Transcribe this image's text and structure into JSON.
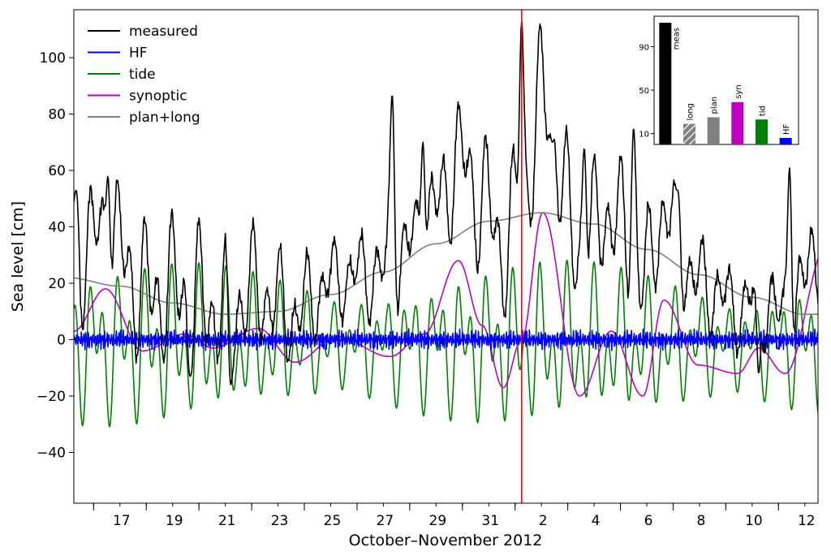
{
  "chart_data": [
    {
      "type": "line",
      "xlabel": "October–November 2012",
      "ylabel": "Sea level [cm]",
      "xlim": [
        "2012-10-15T06:00",
        "2012-11-12T12:00"
      ],
      "ylim": [
        -58,
        117
      ],
      "yticks": [
        -40,
        -20,
        0,
        20,
        40,
        60,
        80,
        100
      ],
      "xtick_labels": [
        {
          "date": "2012-10-17",
          "label": "17"
        },
        {
          "date": "2012-10-19",
          "label": "19"
        },
        {
          "date": "2012-10-21",
          "label": "21"
        },
        {
          "date": "2012-10-23",
          "label": "23"
        },
        {
          "date": "2012-10-25",
          "label": "25"
        },
        {
          "date": "2012-10-27",
          "label": "27"
        },
        {
          "date": "2012-10-29",
          "label": "29"
        },
        {
          "date": "2012-10-31",
          "label": "31"
        },
        {
          "date": "2012-11-02",
          "label": "2"
        },
        {
          "date": "2012-11-04",
          "label": "4"
        },
        {
          "date": "2012-11-06",
          "label": "6"
        },
        {
          "date": "2012-11-08",
          "label": "8"
        },
        {
          "date": "2012-11-10",
          "label": "10"
        },
        {
          "date": "2012-11-12",
          "label": "12"
        }
      ],
      "grid": false,
      "legend_position": "top-left",
      "marker_line": {
        "date": "2012-11-01T06:00",
        "color": "#ff0000"
      },
      "series": [
        {
          "name": "measured",
          "color": "#000000"
        },
        {
          "name": "HF",
          "color": "#0000ff"
        },
        {
          "name": "tide",
          "color": "#008000"
        },
        {
          "name": "synoptic",
          "color": "#bf00bf"
        },
        {
          "name": "plan+long",
          "color": "#808080"
        }
      ],
      "approx_values_note_free": true,
      "plan_long": {
        "x": [
          "2012-10-15",
          "2012-10-17",
          "2012-10-19",
          "2012-10-21",
          "2012-10-23",
          "2012-10-25",
          "2012-10-27",
          "2012-10-29",
          "2012-10-31",
          "2012-11-02",
          "2012-11-04",
          "2012-11-06",
          "2012-11-08",
          "2012-11-10",
          "2012-11-12"
        ],
        "y": [
          22,
          19,
          13,
          9,
          10,
          16,
          24,
          34,
          42,
          45,
          41,
          32,
          23,
          15,
          9
        ]
      },
      "measured_peaks": {
        "x": [
          "2012-10-15T08:00",
          "2012-10-16T13:00",
          "2012-10-19T16:00",
          "2012-10-21T05:00",
          "2012-10-27T08:00",
          "2012-10-28T12:00",
          "2012-11-01T06:00",
          "2012-11-02T10:00",
          "2012-11-03T15:00",
          "2012-11-05T12:00",
          "2012-11-07T04:00",
          "2012-11-10T06:00",
          "2012-11-11T10:00"
        ],
        "y": [
          53,
          58,
          -13,
          -16,
          87,
          70,
          113,
          70,
          68,
          75,
          53,
          -12,
          61
        ]
      }
    },
    {
      "type": "bar",
      "categories": [
        "meas",
        "long",
        "plan",
        "syn",
        "tid",
        "HF"
      ],
      "values": [
        112,
        19,
        25,
        39,
        23,
        6
      ],
      "colors": [
        "#000000",
        "#808080",
        "#808080",
        "#bf00bf",
        "#008000",
        "#0000ff"
      ],
      "hatched": [
        false,
        true,
        false,
        false,
        false,
        false
      ],
      "yticks": [
        10,
        50,
        90
      ],
      "ylim": [
        0,
        118
      ]
    }
  ]
}
